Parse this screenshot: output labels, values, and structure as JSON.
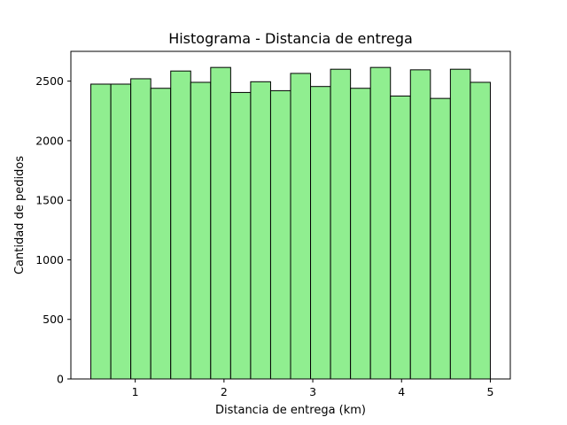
{
  "chart_data": {
    "type": "bar",
    "title": "Histograma - Distancia de entrega",
    "xlabel": "Distancia de entrega (km)",
    "ylabel": "Cantidad de pedidos",
    "bin_edges": [
      0.5,
      0.725,
      0.95,
      1.175,
      1.4,
      1.625,
      1.85,
      2.075,
      2.3,
      2.525,
      2.75,
      2.975,
      3.2,
      3.425,
      3.65,
      3.875,
      4.1,
      4.325,
      4.55,
      4.775,
      5.0
    ],
    "values": [
      2475,
      2475,
      2520,
      2440,
      2585,
      2490,
      2615,
      2405,
      2495,
      2420,
      2565,
      2455,
      2600,
      2440,
      2615,
      2375,
      2595,
      2355,
      2600,
      2490
    ],
    "xlim": [
      0.275,
      5.225
    ],
    "ylim": [
      0,
      2750
    ],
    "xticks": [
      1,
      2,
      3,
      4,
      5
    ],
    "yticks": [
      0,
      500,
      1000,
      1500,
      2000,
      2500
    ],
    "bar_color": "#90ee90",
    "edge_color": "#000000",
    "grid": false,
    "legend": "none"
  }
}
